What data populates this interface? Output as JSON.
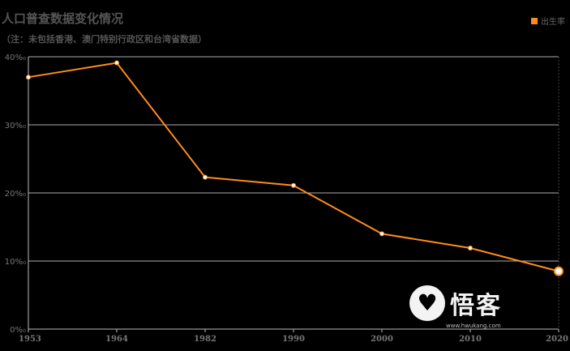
{
  "title": "人口普查数据变化情况",
  "subtitle": "（注：未包括香港、澳门特别行政区和台湾省数据）",
  "legend": {
    "label": "出生率",
    "color": "#ff8c1a"
  },
  "watermark": {
    "text": "悟客",
    "sub": "www.hwukang.com",
    "icon": "heart-icon"
  },
  "chart_data": {
    "type": "line",
    "categories": [
      "1953",
      "1964",
      "1982",
      "1990",
      "2000",
      "2010",
      "2020"
    ],
    "series": [
      {
        "name": "出生率",
        "values": [
          37.0,
          39.1,
          22.3,
          21.1,
          14.0,
          11.9,
          8.5
        ],
        "color": "#ff8c1a"
      }
    ],
    "yticks": [
      "0%₀",
      "10%₀",
      "20%₀",
      "30%₀",
      "40%₀"
    ],
    "ylim": [
      0,
      40
    ],
    "grid": true,
    "legend_position": "top-right"
  }
}
